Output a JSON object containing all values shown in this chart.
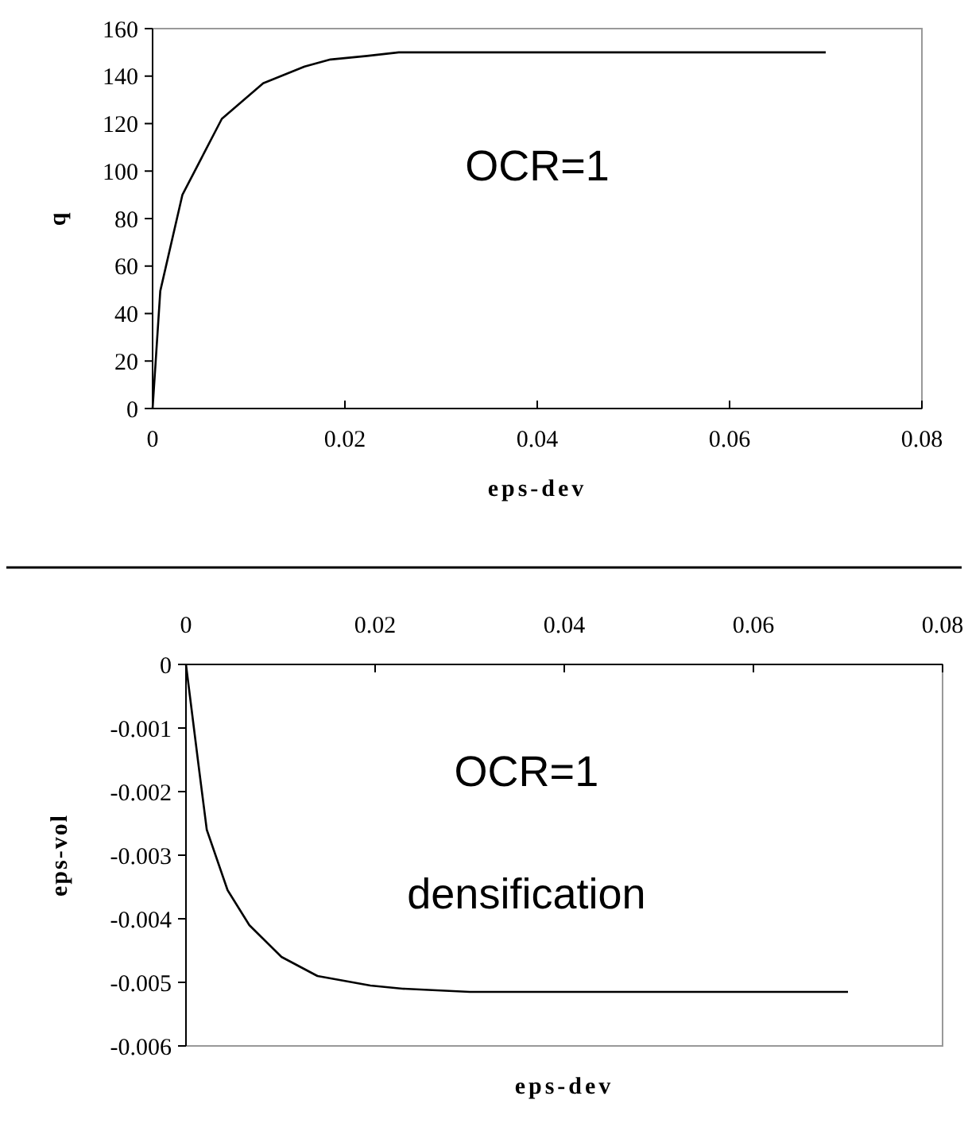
{
  "chart_data": [
    {
      "type": "line",
      "xlabel": "eps-dev",
      "ylabel": "q",
      "annotations": [
        "OCR=1"
      ],
      "xlim": [
        0,
        0.08
      ],
      "ylim": [
        0,
        160
      ],
      "xticks": [
        0,
        0.02,
        0.04,
        0.06,
        0.08
      ],
      "yticks": [
        0,
        20,
        40,
        60,
        80,
        100,
        120,
        140,
        160
      ],
      "grid": false,
      "marker": "none",
      "series": [
        {
          "color": "#000000",
          "x": [
            0,
            0.0008,
            0.0031,
            0.0072,
            0.0115,
            0.0158,
            0.0185,
            0.0223,
            0.0256,
            0.035,
            0.05,
            0.07
          ],
          "values": [
            0,
            49.5,
            90,
            122,
            137,
            144,
            147,
            148.5,
            150,
            150,
            150,
            150
          ]
        }
      ]
    },
    {
      "type": "line",
      "xlabel": "eps-dev",
      "ylabel": "eps-vol",
      "annotations": [
        "OCR=1",
        "densification"
      ],
      "xlim": [
        0,
        0.08
      ],
      "ylim": [
        -0.006,
        0
      ],
      "xticks": [
        0,
        0.02,
        0.04,
        0.06,
        0.08
      ],
      "yticks": [
        -0.006,
        -0.005,
        -0.004,
        -0.003,
        -0.002,
        -0.001,
        0
      ],
      "grid": false,
      "marker": "none",
      "series": [
        {
          "color": "#000000",
          "x": [
            0,
            0.0013,
            0.0022,
            0.0044,
            0.0067,
            0.0101,
            0.0139,
            0.0195,
            0.0229,
            0.03,
            0.05,
            0.07
          ],
          "values": [
            0,
            -0.00155,
            -0.0026,
            -0.00355,
            -0.0041,
            -0.0046,
            -0.0049,
            -0.00505,
            -0.0051,
            -0.00515,
            -0.00515,
            -0.00515
          ]
        }
      ]
    }
  ]
}
